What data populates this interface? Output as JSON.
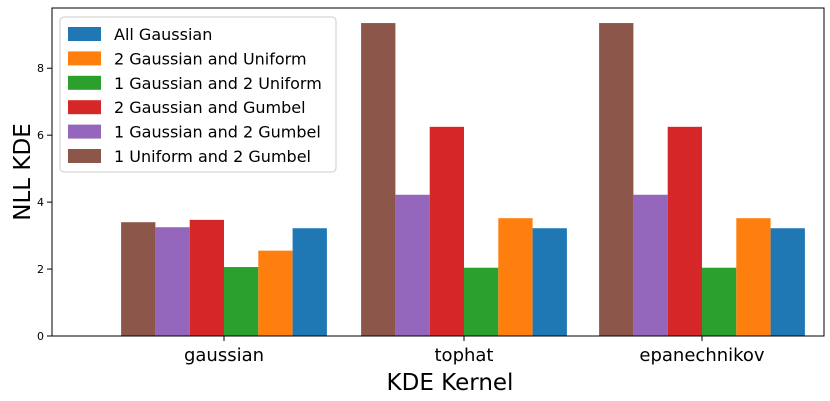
{
  "chart_data": {
    "type": "bar",
    "xlabel": "KDE Kernel",
    "ylabel": "NLL KDE",
    "categories": [
      "gaussian",
      "tophat",
      "epanechnikov"
    ],
    "ylim": [
      0,
      9.8
    ],
    "yticks": [
      0,
      2,
      4,
      6,
      8
    ],
    "grid": false,
    "legend_position": "top-left",
    "series": [
      {
        "name": "1 Uniform and 2 Gumbel",
        "color": "#8c564b",
        "values": [
          3.4,
          9.35,
          9.35
        ]
      },
      {
        "name": "1 Gaussian and 2 Gumbel",
        "color": "#9467bd",
        "values": [
          3.25,
          4.22,
          4.22
        ]
      },
      {
        "name": "2 Gaussian and Gumbel",
        "color": "#d62728",
        "values": [
          3.47,
          6.25,
          6.25
        ]
      },
      {
        "name": "1 Gaussian and 2 Uniform",
        "color": "#2ca02c",
        "values": [
          2.06,
          2.04,
          2.04
        ]
      },
      {
        "name": "2 Gaussian and Uniform",
        "color": "#ff7f0e",
        "values": [
          2.55,
          3.52,
          3.52
        ]
      },
      {
        "name": "All Gaussian",
        "color": "#1f77b4",
        "values": [
          3.22,
          3.22,
          3.22
        ]
      }
    ],
    "legend_order": [
      "All Gaussian",
      "2 Gaussian and Uniform",
      "1 Gaussian and 2 Uniform",
      "2 Gaussian and Gumbel",
      "1 Gaussian and 2 Gumbel",
      "1 Uniform and 2 Gumbel"
    ]
  }
}
